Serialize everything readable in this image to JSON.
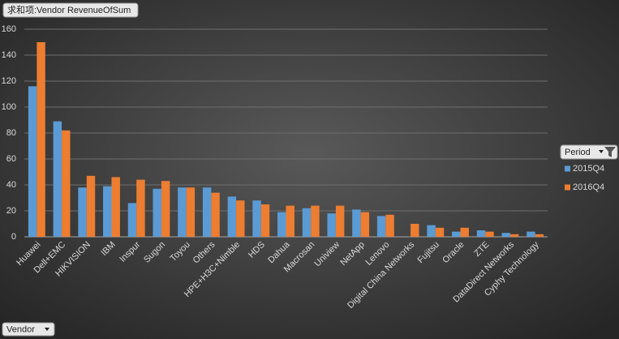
{
  "chart_data": {
    "type": "bar",
    "field_button": "求和项:Vendor RevenueOfSum",
    "x_field": "Vendor",
    "legend_title": "Period",
    "categories": [
      "Huawei",
      "Dell+EMC",
      "HIKVISION",
      "IBM",
      "Inspur",
      "Sugon",
      "Toyou",
      "Others",
      "HPE+H3C+Nimble",
      "HDS",
      "Dahua",
      "Macrosan",
      "Uniview",
      "NetApp",
      "Lenovo",
      "Digital China Networks",
      "Fujitsu",
      "Oracle",
      "ZTE",
      "DataDirect Networks",
      "Cyphy Technology"
    ],
    "series": [
      {
        "name": "2015Q4",
        "color": "#5b9bd5",
        "values": [
          116,
          89,
          38,
          39,
          26,
          37,
          38,
          38,
          31,
          28,
          19,
          22,
          18,
          21,
          16,
          null,
          9,
          4,
          5,
          3,
          4
        ]
      },
      {
        "name": "2016Q4",
        "color": "#ed7d31",
        "values": [
          150,
          82,
          47,
          46,
          44,
          43,
          38,
          34,
          28,
          25,
          24,
          24,
          24,
          19,
          17,
          10,
          7,
          7,
          4,
          2,
          2
        ]
      }
    ],
    "ylim": [
      0,
      160
    ],
    "yticks": [
      0,
      20,
      40,
      60,
      80,
      100,
      120,
      140,
      160
    ],
    "grid": true
  }
}
